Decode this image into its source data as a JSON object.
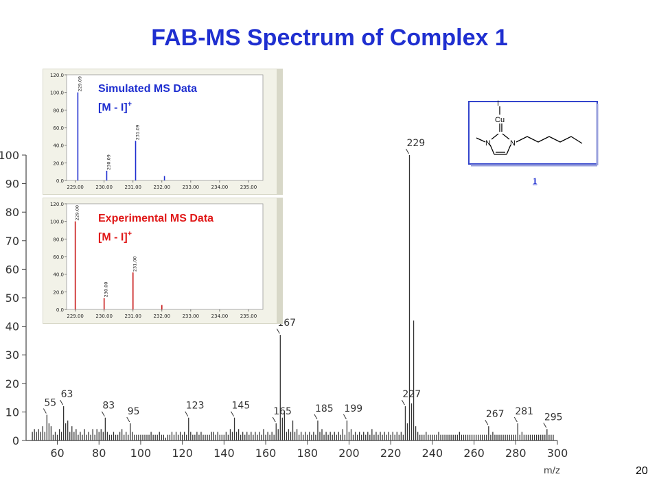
{
  "slide": {
    "title": "FAB-MS Spectrum of Complex 1",
    "page_number": "20",
    "compound_number": "1"
  },
  "structure": {
    "atoms": [
      "I",
      "Cu",
      "N",
      "N"
    ]
  },
  "chart_data": [
    {
      "type": "bar",
      "xlabel": "m/z",
      "ylabel": "",
      "xlim": [
        45,
        300
      ],
      "ylim": [
        0,
        100
      ],
      "x_ticks": [
        60,
        80,
        100,
        120,
        140,
        160,
        180,
        200,
        220,
        240,
        260,
        280,
        300
      ],
      "y_ticks": [
        0,
        10,
        20,
        30,
        40,
        50,
        60,
        70,
        80,
        90,
        100
      ],
      "grid": false,
      "color": "#333333",
      "peak_labels": [
        {
          "mz": 55,
          "label": "55"
        },
        {
          "mz": 63,
          "label": "63"
        },
        {
          "mz": 83,
          "label": "83"
        },
        {
          "mz": 95,
          "label": "95"
        },
        {
          "mz": 123,
          "label": "123"
        },
        {
          "mz": 145,
          "label": "145"
        },
        {
          "mz": 165,
          "label": "165"
        },
        {
          "mz": 167,
          "label": "167"
        },
        {
          "mz": 185,
          "label": "185"
        },
        {
          "mz": 199,
          "label": "199"
        },
        {
          "mz": 227,
          "label": "227"
        },
        {
          "mz": 229,
          "label": "229"
        },
        {
          "mz": 267,
          "label": "267"
        },
        {
          "mz": 281,
          "label": "281"
        },
        {
          "mz": 295,
          "label": "295"
        }
      ],
      "peaks": [
        [
          48,
          3
        ],
        [
          49,
          4
        ],
        [
          50,
          3
        ],
        [
          51,
          4
        ],
        [
          52,
          3
        ],
        [
          53,
          5
        ],
        [
          54,
          3
        ],
        [
          55,
          9
        ],
        [
          56,
          6
        ],
        [
          57,
          5
        ],
        [
          58,
          2
        ],
        [
          59,
          3
        ],
        [
          60,
          2
        ],
        [
          61,
          4
        ],
        [
          62,
          3
        ],
        [
          63,
          12
        ],
        [
          64,
          6
        ],
        [
          65,
          7
        ],
        [
          66,
          3
        ],
        [
          67,
          5
        ],
        [
          68,
          3
        ],
        [
          69,
          4
        ],
        [
          70,
          2
        ],
        [
          71,
          3
        ],
        [
          72,
          2
        ],
        [
          73,
          4
        ],
        [
          74,
          2
        ],
        [
          75,
          3
        ],
        [
          76,
          2
        ],
        [
          77,
          4
        ],
        [
          78,
          2
        ],
        [
          79,
          4
        ],
        [
          80,
          3
        ],
        [
          81,
          4
        ],
        [
          82,
          3
        ],
        [
          83,
          8
        ],
        [
          84,
          3
        ],
        [
          85,
          2
        ],
        [
          86,
          2
        ],
        [
          87,
          3
        ],
        [
          88,
          2
        ],
        [
          89,
          2
        ],
        [
          90,
          3
        ],
        [
          91,
          4
        ],
        [
          92,
          2
        ],
        [
          93,
          3
        ],
        [
          94,
          2
        ],
        [
          95,
          6
        ],
        [
          96,
          3
        ],
        [
          97,
          2
        ],
        [
          98,
          2
        ],
        [
          99,
          2
        ],
        [
          100,
          2
        ],
        [
          101,
          2
        ],
        [
          102,
          2
        ],
        [
          103,
          2
        ],
        [
          104,
          2
        ],
        [
          105,
          3
        ],
        [
          106,
          2
        ],
        [
          107,
          2
        ],
        [
          108,
          2
        ],
        [
          109,
          3
        ],
        [
          110,
          2
        ],
        [
          111,
          2
        ],
        [
          112,
          1
        ],
        [
          113,
          2
        ],
        [
          114,
          2
        ],
        [
          115,
          3
        ],
        [
          116,
          2
        ],
        [
          117,
          3
        ],
        [
          118,
          2
        ],
        [
          119,
          3
        ],
        [
          120,
          2
        ],
        [
          121,
          3
        ],
        [
          122,
          2
        ],
        [
          123,
          8
        ],
        [
          124,
          3
        ],
        [
          125,
          2
        ],
        [
          126,
          2
        ],
        [
          127,
          3
        ],
        [
          128,
          2
        ],
        [
          129,
          3
        ],
        [
          130,
          2
        ],
        [
          131,
          2
        ],
        [
          132,
          2
        ],
        [
          133,
          2
        ],
        [
          134,
          3
        ],
        [
          135,
          3
        ],
        [
          136,
          2
        ],
        [
          137,
          3
        ],
        [
          138,
          2
        ],
        [
          139,
          2
        ],
        [
          140,
          2
        ],
        [
          141,
          3
        ],
        [
          142,
          2
        ],
        [
          143,
          4
        ],
        [
          144,
          3
        ],
        [
          145,
          8
        ],
        [
          146,
          3
        ],
        [
          147,
          4
        ],
        [
          148,
          2
        ],
        [
          149,
          3
        ],
        [
          150,
          2
        ],
        [
          151,
          3
        ],
        [
          152,
          2
        ],
        [
          153,
          3
        ],
        [
          154,
          2
        ],
        [
          155,
          3
        ],
        [
          156,
          2
        ],
        [
          157,
          3
        ],
        [
          158,
          2
        ],
        [
          159,
          4
        ],
        [
          160,
          2
        ],
        [
          161,
          3
        ],
        [
          162,
          2
        ],
        [
          163,
          3
        ],
        [
          164,
          2
        ],
        [
          165,
          6
        ],
        [
          166,
          4
        ],
        [
          167,
          37
        ],
        [
          168,
          8
        ],
        [
          169,
          10
        ],
        [
          170,
          3
        ],
        [
          171,
          4
        ],
        [
          172,
          3
        ],
        [
          173,
          7
        ],
        [
          174,
          3
        ],
        [
          175,
          4
        ],
        [
          176,
          2
        ],
        [
          177,
          3
        ],
        [
          178,
          2
        ],
        [
          179,
          3
        ],
        [
          180,
          2
        ],
        [
          181,
          3
        ],
        [
          182,
          2
        ],
        [
          183,
          3
        ],
        [
          184,
          2
        ],
        [
          185,
          7
        ],
        [
          186,
          3
        ],
        [
          187,
          4
        ],
        [
          188,
          2
        ],
        [
          189,
          3
        ],
        [
          190,
          2
        ],
        [
          191,
          3
        ],
        [
          192,
          2
        ],
        [
          193,
          3
        ],
        [
          194,
          2
        ],
        [
          195,
          3
        ],
        [
          196,
          2
        ],
        [
          197,
          4
        ],
        [
          198,
          2
        ],
        [
          199,
          7
        ],
        [
          200,
          3
        ],
        [
          201,
          4
        ],
        [
          202,
          2
        ],
        [
          203,
          3
        ],
        [
          204,
          2
        ],
        [
          205,
          3
        ],
        [
          206,
          2
        ],
        [
          207,
          3
        ],
        [
          208,
          2
        ],
        [
          209,
          3
        ],
        [
          210,
          2
        ],
        [
          211,
          4
        ],
        [
          212,
          2
        ],
        [
          213,
          3
        ],
        [
          214,
          2
        ],
        [
          215,
          3
        ],
        [
          216,
          2
        ],
        [
          217,
          3
        ],
        [
          218,
          2
        ],
        [
          219,
          3
        ],
        [
          220,
          2
        ],
        [
          221,
          3
        ],
        [
          222,
          2
        ],
        [
          223,
          3
        ],
        [
          224,
          2
        ],
        [
          225,
          3
        ],
        [
          226,
          2
        ],
        [
          227,
          12
        ],
        [
          228,
          6
        ],
        [
          229,
          100
        ],
        [
          230,
          13
        ],
        [
          231,
          42
        ],
        [
          232,
          5
        ],
        [
          233,
          3
        ],
        [
          234,
          2
        ],
        [
          235,
          2
        ],
        [
          236,
          2
        ],
        [
          237,
          3
        ],
        [
          238,
          2
        ],
        [
          239,
          2
        ],
        [
          240,
          2
        ],
        [
          241,
          2
        ],
        [
          242,
          2
        ],
        [
          243,
          3
        ],
        [
          244,
          2
        ],
        [
          245,
          2
        ],
        [
          246,
          2
        ],
        [
          247,
          2
        ],
        [
          248,
          2
        ],
        [
          249,
          2
        ],
        [
          250,
          2
        ],
        [
          251,
          2
        ],
        [
          252,
          2
        ],
        [
          253,
          3
        ],
        [
          254,
          2
        ],
        [
          255,
          2
        ],
        [
          256,
          2
        ],
        [
          257,
          2
        ],
        [
          258,
          2
        ],
        [
          259,
          2
        ],
        [
          260,
          2
        ],
        [
          261,
          2
        ],
        [
          262,
          2
        ],
        [
          263,
          2
        ],
        [
          264,
          2
        ],
        [
          265,
          2
        ],
        [
          266,
          2
        ],
        [
          267,
          5
        ],
        [
          268,
          2
        ],
        [
          269,
          3
        ],
        [
          270,
          2
        ],
        [
          271,
          2
        ],
        [
          272,
          2
        ],
        [
          273,
          2
        ],
        [
          274,
          2
        ],
        [
          275,
          2
        ],
        [
          276,
          2
        ],
        [
          277,
          2
        ],
        [
          278,
          2
        ],
        [
          279,
          2
        ],
        [
          280,
          2
        ],
        [
          281,
          6
        ],
        [
          282,
          2
        ],
        [
          283,
          3
        ],
        [
          284,
          2
        ],
        [
          285,
          2
        ],
        [
          286,
          2
        ],
        [
          287,
          2
        ],
        [
          288,
          2
        ],
        [
          289,
          2
        ],
        [
          290,
          2
        ],
        [
          291,
          2
        ],
        [
          292,
          2
        ],
        [
          293,
          2
        ],
        [
          294,
          2
        ],
        [
          295,
          4
        ],
        [
          296,
          2
        ],
        [
          297,
          2
        ],
        [
          298,
          2
        ]
      ]
    },
    {
      "type": "bar",
      "title": "Simulated MS Data",
      "ion_label": "[M - I]",
      "ion_charge": "+",
      "color": "#1f2fd0",
      "xlim": [
        228.7,
        235.5
      ],
      "ylim": [
        0,
        120
      ],
      "x_ticks": [
        "229.00",
        "230.00",
        "231.00",
        "232.00",
        "233.00",
        "234.00",
        "235.00"
      ],
      "y_ticks": [
        "0.0",
        "20.0",
        "40.0",
        "60.0",
        "80.0",
        "100.0",
        "120.0"
      ],
      "x": [
        229.09,
        230.09,
        231.09,
        232.09
      ],
      "values": [
        100,
        11,
        45,
        5
      ],
      "data_labels": [
        "229.09",
        "230.09",
        "231.09",
        ""
      ]
    },
    {
      "type": "bar",
      "title": "Experimental MS Data",
      "ion_label": "[M - I]",
      "ion_charge": "+",
      "color": "#c81818",
      "xlim": [
        228.7,
        235.5
      ],
      "ylim": [
        0,
        120
      ],
      "x_ticks": [
        "229.00",
        "230.00",
        "231.00",
        "232.00",
        "233.00",
        "234.00",
        "235.00"
      ],
      "y_ticks": [
        "0.0",
        "20.0",
        "40.0",
        "60.0",
        "80.0",
        "100.0",
        "120.0"
      ],
      "x": [
        229.0,
        230.0,
        231.0,
        232.0
      ],
      "values": [
        100,
        13,
        42,
        5
      ],
      "data_labels": [
        "229.00",
        "230.00",
        "231.00",
        ""
      ]
    }
  ]
}
